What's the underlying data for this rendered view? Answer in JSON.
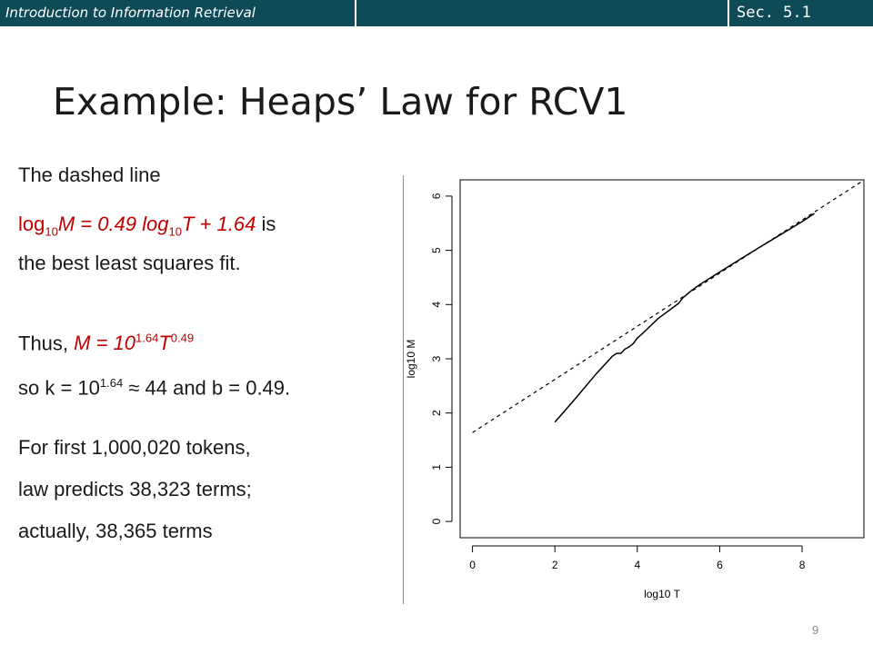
{
  "header": {
    "course_title": "Introduction to Information Retrieval",
    "section": "Sec. 5.1"
  },
  "slide": {
    "title": "Example: Heaps’ Law for RCV1",
    "page_number": "9"
  },
  "body": {
    "line1": "The dashed line",
    "eq_log1": "log",
    "eq_sub1": "10",
    "eq_m_part": "M = 0.49 log",
    "eq_sub2": "10",
    "eq_t_part": "T + 1.64",
    "eq_is": " is",
    "line3": "the best least squares fit.",
    "thus_prefix": "Thus, ",
    "thus_m": "M = 10",
    "thus_exp1": "1.64",
    "thus_t": "T",
    "thus_exp2": "0.49",
    "so_prefix": "so k = 10",
    "so_exp": "1.64",
    "so_rest": " ≈ 44 and b = 0.49.",
    "first": "For first 1,000,020 tokens,",
    "predicts": "law predicts 38,323 terms;",
    "actually": "actually, 38,365 terms"
  },
  "chart_data": {
    "type": "line",
    "xlabel": "log10 T",
    "ylabel": "log10 M",
    "xlim": [
      -0.3,
      9.5
    ],
    "ylim": [
      -0.3,
      6.3
    ],
    "x_ticks": [
      0,
      2,
      4,
      6,
      8
    ],
    "y_ticks": [
      0,
      1,
      2,
      3,
      4,
      5,
      6
    ],
    "grid": false,
    "series": [
      {
        "style": "solid",
        "x": [
          2.0,
          2.5,
          3.0,
          3.4,
          3.5,
          3.6,
          3.7,
          3.8,
          3.9,
          4.0,
          4.2,
          4.5,
          5.0,
          5.1,
          5.3,
          5.5,
          6.0,
          6.5,
          7.0,
          7.5,
          8.0,
          8.3
        ],
        "y": [
          1.83,
          2.27,
          2.72,
          3.05,
          3.1,
          3.1,
          3.18,
          3.22,
          3.28,
          3.38,
          3.52,
          3.74,
          4.02,
          4.12,
          4.25,
          4.36,
          4.6,
          4.84,
          5.07,
          5.3,
          5.53,
          5.68
        ]
      },
      {
        "style": "dashed",
        "x": [
          0.0,
          9.5
        ],
        "y": [
          1.64,
          6.295
        ]
      }
    ]
  }
}
